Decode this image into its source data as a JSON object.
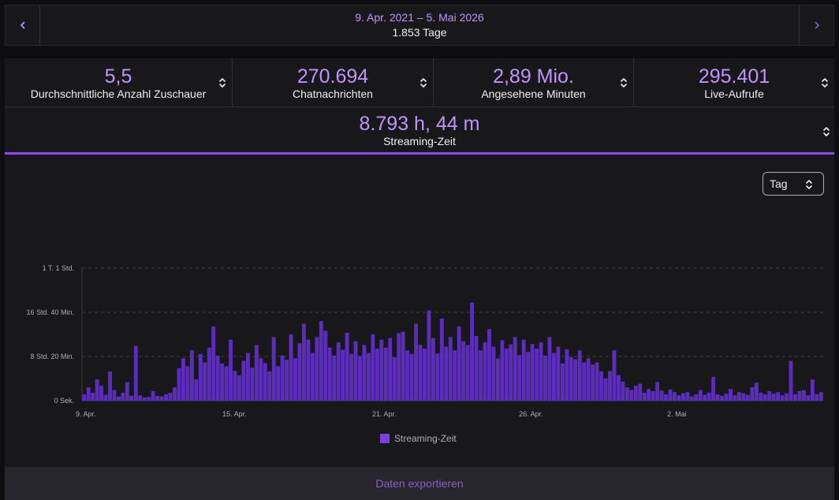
{
  "range": {
    "dates": "9. Apr. 2021 – 5. Mai 2026",
    "days": "1.853 Tage"
  },
  "stats": [
    {
      "value": "5,5",
      "label": "Durchschnittliche Anzahl Zuschauer"
    },
    {
      "value": "270.694",
      "label": "Chatnachrichten"
    },
    {
      "value": "2,89 Mio.",
      "label": "Angesehene Minuten"
    },
    {
      "value": "295.401",
      "label": "Live-Aufrufe"
    }
  ],
  "streaming": {
    "value": "8.793 h, 44 m",
    "label": "Streaming-Zeit"
  },
  "period_select": {
    "value": "Tag"
  },
  "export": {
    "label": "Daten exportieren"
  },
  "colors": {
    "accent": "#9147ff",
    "bar": "#5c2dbd",
    "value_text": "#bf94ff"
  },
  "chart_data": {
    "type": "bar",
    "y_unit": "hours",
    "ylim": [
      0,
      25
    ],
    "y_ticks": [
      {
        "value": 0,
        "label": "0 Sek."
      },
      {
        "value": 8.333,
        "label": "8 Std. 20 Min."
      },
      {
        "value": 16.667,
        "label": "16 Std. 40 Min."
      },
      {
        "value": 25,
        "label": "1 T. 1 Std."
      }
    ],
    "x_ticks": [
      "9. Apr.",
      "15. Apr.",
      "21. Apr.",
      "26. Apr.",
      "2. Mai"
    ],
    "legend": [
      "Streaming-Zeit"
    ],
    "grid": true,
    "series": [
      {
        "name": "Streaming-Zeit",
        "values": [
          1.2,
          2.5,
          1.5,
          4.0,
          2.8,
          1.1,
          5.5,
          2.0,
          0.8,
          1.5,
          3.5,
          0.9,
          10.3,
          1.0,
          0.6,
          0.7,
          1.8,
          0.9,
          0.8,
          1.2,
          1.5,
          2.5,
          6.1,
          8.0,
          6.5,
          9.5,
          4.0,
          8.8,
          7.2,
          10.0,
          14.0,
          8.5,
          7.0,
          6.5,
          11.5,
          5.6,
          4.8,
          7.5,
          9.0,
          6.2,
          10.5,
          8.0,
          7.1,
          5.5,
          12.0,
          6.5,
          8.5,
          7.7,
          12.5,
          8.0,
          10.8,
          14.5,
          11.5,
          9.0,
          12.0,
          15.0,
          13.2,
          10.0,
          8.5,
          11.0,
          9.6,
          12.8,
          8.8,
          11.2,
          8.4,
          10.5,
          9.0,
          12.5,
          9.8,
          11.5,
          10.0,
          11.8,
          8.2,
          12.7,
          13.0,
          9.5,
          8.8,
          14.5,
          10.5,
          9.8,
          17.0,
          11.8,
          8.9,
          15.5,
          10.2,
          12.0,
          9.5,
          14.0,
          11.2,
          10.5,
          18.5,
          12.2,
          9.5,
          11.0,
          13.5,
          10.2,
          8.0,
          11.4,
          9.8,
          10.6,
          12.0,
          8.6,
          11.5,
          9.2,
          10.7,
          9.8,
          11.0,
          8.5,
          12.0,
          9.0,
          10.2,
          7.0,
          9.7,
          8.2,
          7.8,
          9.5,
          7.2,
          8.0,
          6.8,
          7.2,
          5.5,
          4.2,
          5.6,
          9.5,
          4.8,
          3.6,
          2.5,
          2.0,
          2.8,
          3.2,
          1.5,
          2.2,
          1.8,
          3.5,
          1.9,
          1.2,
          2.1,
          1.6,
          1.0,
          1.4,
          1.6,
          0.8,
          1.2,
          2.0,
          1.1,
          1.5,
          4.5,
          1.2,
          0.9,
          1.3,
          2.2,
          1.0,
          1.6,
          1.4,
          1.1,
          2.5,
          3.4,
          1.5,
          1.2,
          1.8,
          1.3,
          1.6,
          1.0,
          1.4,
          7.5,
          1.2,
          1.8,
          2.0,
          1.0,
          4.0,
          1.2,
          1.6
        ]
      }
    ]
  }
}
